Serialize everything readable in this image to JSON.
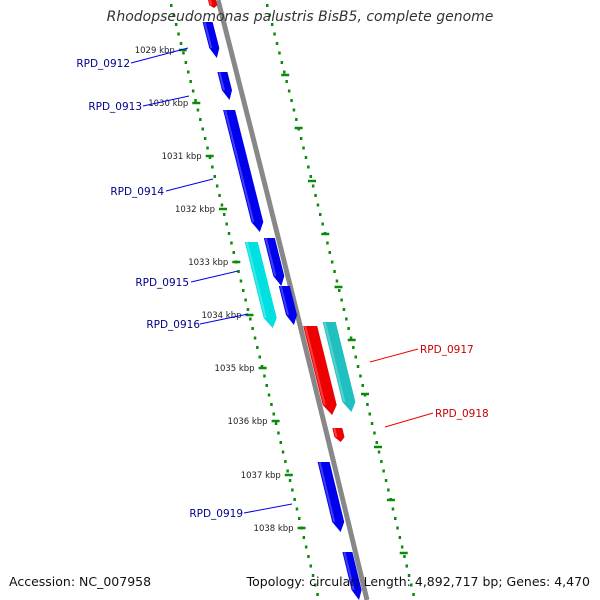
{
  "title": "Rhodopseudomonas palustris BisB5, complete genome",
  "accession_text": "Accession: NC_007958",
  "topology_text": "Topology: circular; Length: 4,892,717 bp; Genes: 4,470",
  "colors": {
    "backbone": "#888888",
    "tick": "#0a8a0a",
    "forward_gene": "#0000ee",
    "forward_label": "#00008b",
    "reverse_gene": "#ee0000",
    "reverse_label": "#cc0000",
    "pseudo_forward": "#00e0e0",
    "pseudo_reverse": "#20c0c0"
  },
  "kbp_labels": [
    "1029 kbp",
    "1030 kbp",
    "1031 kbp",
    "1032 kbp",
    "1033 kbp",
    "1034 kbp",
    "1035 kbp",
    "1036 kbp",
    "1037 kbp",
    "1038 kbp"
  ],
  "genes": [
    {
      "id": "g1",
      "strand": "forward",
      "label": "",
      "color": "forward_gene"
    },
    {
      "id": "g2",
      "strand": "forward",
      "label": "",
      "color": "forward_gene"
    },
    {
      "id": "g3",
      "strand": "forward",
      "label": "",
      "color": "forward_gene"
    },
    {
      "id": "g4",
      "strand": "forward",
      "label": "",
      "color": "pseudo_forward"
    },
    {
      "id": "g5",
      "strand": "forward",
      "label": "",
      "color": "forward_gene"
    },
    {
      "id": "g6",
      "strand": "forward",
      "label": "",
      "color": "forward_gene"
    },
    {
      "id": "g7",
      "strand": "reverse",
      "label": "",
      "color": "reverse_gene"
    },
    {
      "id": "g8",
      "strand": "reverse",
      "label": "",
      "color": "pseudo_reverse"
    },
    {
      "id": "g9",
      "strand": "reverse",
      "label": "",
      "color": "reverse_gene"
    },
    {
      "id": "g10",
      "strand": "forward",
      "label": "",
      "color": "forward_gene"
    },
    {
      "id": "g11",
      "strand": "forward",
      "label": "",
      "color": "forward_gene"
    },
    {
      "id": "g12",
      "strand": "reverse",
      "label": "",
      "color": "reverse_gene"
    }
  ],
  "gene_labels": [
    {
      "text": "RPD_0912",
      "strand": "forward"
    },
    {
      "text": "RPD_0913",
      "strand": "forward"
    },
    {
      "text": "RPD_0914",
      "strand": "forward"
    },
    {
      "text": "RPD_0915",
      "strand": "forward"
    },
    {
      "text": "RPD_0916",
      "strand": "forward"
    },
    {
      "text": "RPD_0917",
      "strand": "reverse"
    },
    {
      "text": "RPD_0918",
      "strand": "reverse"
    },
    {
      "text": "RPD_0919",
      "strand": "forward"
    }
  ]
}
